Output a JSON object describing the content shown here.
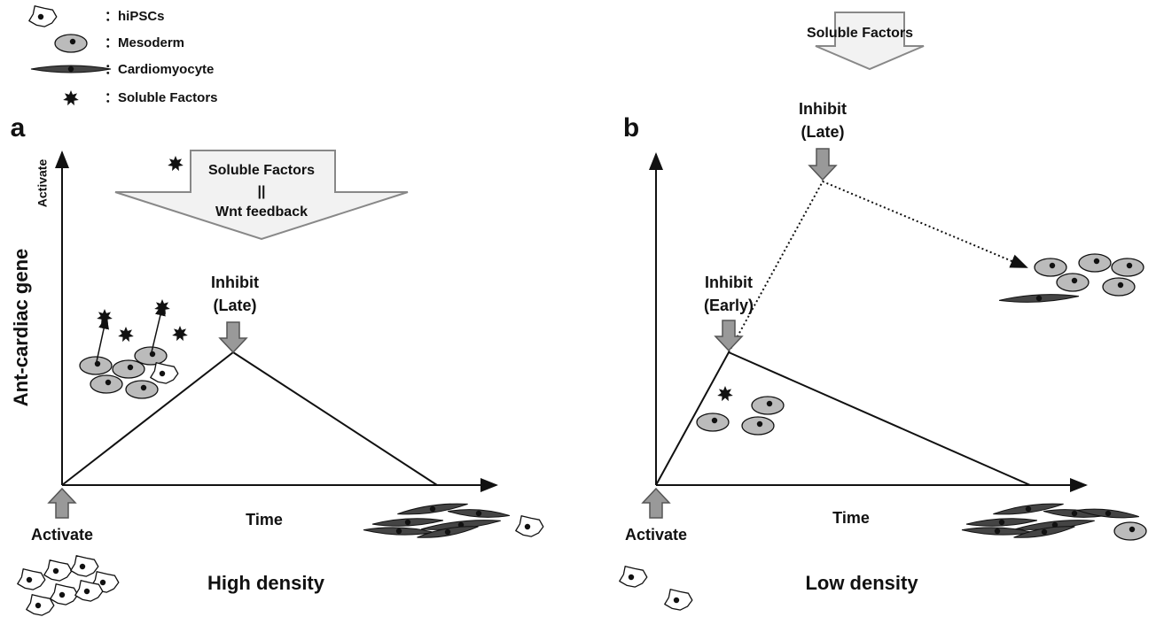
{
  "legend": [
    {
      "label": "：hiPSCs"
    },
    {
      "label": "：Mesoderm"
    },
    {
      "label": "：Cardiomyocyte"
    },
    {
      "label": "：Soluble Factors"
    }
  ],
  "panels": [
    {
      "letter": "a",
      "y_axis_label": "Ant-cardiac gene",
      "y_axis_top": "Activate",
      "banner": {
        "line1": "Soluble Factors",
        "line2": "||",
        "line3": "Wnt feedback"
      },
      "inhibit": {
        "line1": "Inhibit",
        "line2": "(Late)"
      },
      "activate": "Activate",
      "x_axis_label": "Time",
      "caption": "High density"
    },
    {
      "letter": "b",
      "banner": {
        "line1": "Soluble Factors"
      },
      "inhibit_late": {
        "line1": "Inhibit",
        "line2": "(Late)"
      },
      "inhibit_early": {
        "line1": "Inhibit",
        "line2": "(Early)"
      },
      "activate": "Activate",
      "x_axis_label": "Time",
      "caption": "Low density"
    }
  ]
}
